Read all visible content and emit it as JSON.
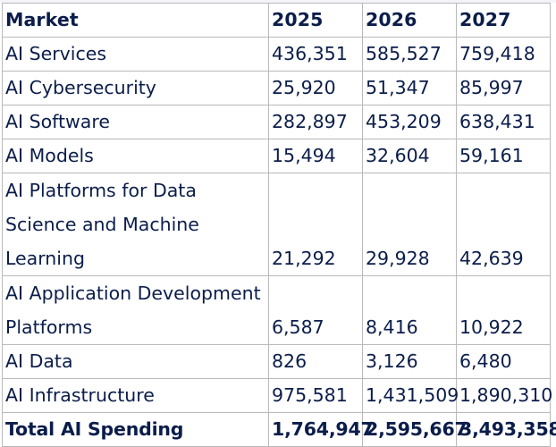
{
  "table": {
    "headers": [
      "Market",
      "2025",
      "2026",
      "2027"
    ],
    "rows": [
      {
        "market": "AI Services",
        "v2025": "436,351",
        "v2026": "585,527",
        "v2027": "759,418"
      },
      {
        "market": "AI Cybersecurity",
        "v2025": "25,920",
        "v2026": "51,347",
        "v2027": "85,997"
      },
      {
        "market": "AI Software",
        "v2025": "282,897",
        "v2026": "453,209",
        "v2027": "638,431"
      },
      {
        "market": "AI Models",
        "v2025": "15,494",
        "v2026": "32,604",
        "v2027": "59,161"
      },
      {
        "market": "AI Platforms for Data Science and Machine Learning",
        "v2025": "21,292",
        "v2026": "29,928",
        "v2027": "42,639"
      },
      {
        "market": "AI Application Development Platforms",
        "v2025": "6,587",
        "v2026": "8,416",
        "v2027": "10,922"
      },
      {
        "market": "AI Data",
        "v2025": "826",
        "v2026": "3,126",
        "v2027": "6,480"
      },
      {
        "market": "AI Infrastructure",
        "v2025": "975,581",
        "v2026": "1,431,509",
        "v2027": "1,890,310"
      }
    ],
    "total": {
      "market": "Total AI Spending",
      "v2025": "1,764,947",
      "v2026": "2,595,667",
      "v2027": "3,493,358"
    }
  },
  "colors": {
    "text": "#0b1d4a",
    "border": "#b9b9b9"
  }
}
